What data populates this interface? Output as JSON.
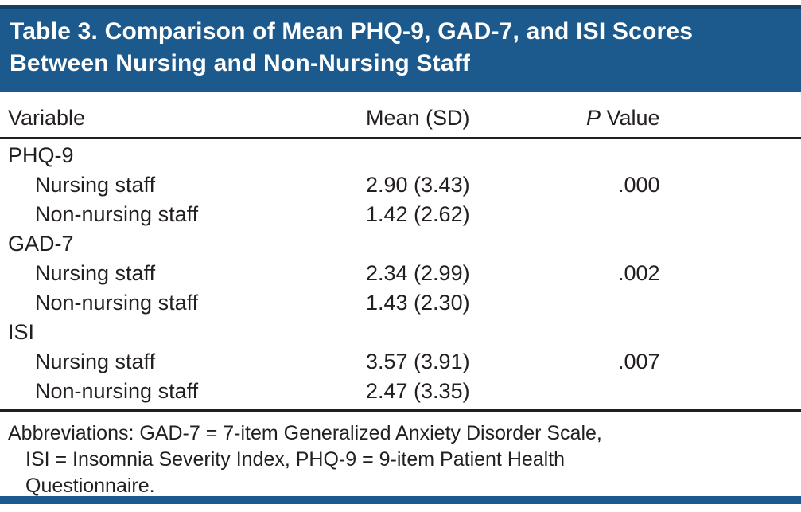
{
  "table": {
    "title_lines": [
      "Table 3. Comparison of Mean PHQ-9, GAD-7, and ISI Scores",
      "Between Nursing and Non-Nursing Staff"
    ],
    "columns": {
      "variable": "Variable",
      "mean_sd": "Mean (SD)",
      "p_prefix": "P",
      "p_rest": " Value"
    },
    "groups": [
      {
        "label": "PHQ-9",
        "rows": [
          {
            "variable": "Nursing staff",
            "mean_sd": "2.90 (3.43)",
            "p_value": ".000"
          },
          {
            "variable": "Non-nursing staff",
            "mean_sd": "1.42 (2.62)",
            "p_value": ""
          }
        ]
      },
      {
        "label": "GAD-7",
        "rows": [
          {
            "variable": "Nursing staff",
            "mean_sd": "2.34 (2.99)",
            "p_value": ".002"
          },
          {
            "variable": "Non-nursing staff",
            "mean_sd": "1.43 (2.30)",
            "p_value": ""
          }
        ]
      },
      {
        "label": "ISI",
        "rows": [
          {
            "variable": "Nursing staff",
            "mean_sd": "3.57 (3.91)",
            "p_value": ".007"
          },
          {
            "variable": "Non-nursing staff",
            "mean_sd": "2.47 (3.35)",
            "p_value": ""
          }
        ]
      }
    ],
    "footnote_lines": [
      "Abbreviations: GAD-7 = 7-item Generalized Anxiety Disorder Scale,",
      "ISI = Insomnia Severity Index, PHQ-9 = 9-item Patient Health",
      "Questionnaire."
    ],
    "colors": {
      "header_bg": "#1c5a8e",
      "header_top_rule": "#133e66",
      "rule": "#231f20",
      "text": "#231f20"
    }
  }
}
